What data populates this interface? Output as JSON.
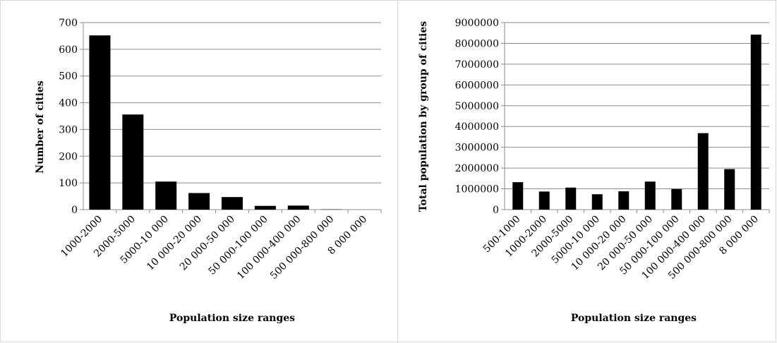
{
  "chart_data": [
    {
      "type": "bar",
      "categories": [
        "1000-2000",
        "2000-5000",
        "5000-10 000",
        "10 000-20 000",
        "20 000-50 000",
        "50 000-100 000",
        "100 000-400 000",
        "500 000-800 000",
        "8 000 000"
      ],
      "values": [
        652,
        356,
        105,
        62,
        47,
        14,
        15,
        1,
        0
      ],
      "title": "",
      "xlabel": "Population size ranges",
      "ylabel": "Number of cities",
      "ylim": [
        0,
        700
      ],
      "yticks": [
        0,
        100,
        200,
        300,
        400,
        500,
        600,
        700
      ],
      "grid": true,
      "bar_color": "#000000"
    },
    {
      "type": "bar",
      "categories": [
        "500-1000",
        "1000-2000",
        "2000-5000",
        "5000-10 000",
        "10 000-20 000",
        "20 000-50 000",
        "50 000-100 000",
        "100 000-400 000",
        "500 000-800 000",
        "8 000 000"
      ],
      "values": [
        1320000,
        870000,
        1060000,
        740000,
        880000,
        1350000,
        990000,
        3680000,
        1950000,
        8420000
      ],
      "title": "",
      "xlabel": "Population size ranges",
      "ylabel": "Total population by group of cities",
      "ylim": [
        0,
        9000000
      ],
      "yticks": [
        0,
        1000000,
        2000000,
        3000000,
        4000000,
        5000000,
        6000000,
        7000000,
        8000000,
        9000000
      ],
      "grid": true,
      "bar_color": "#000000"
    }
  ]
}
